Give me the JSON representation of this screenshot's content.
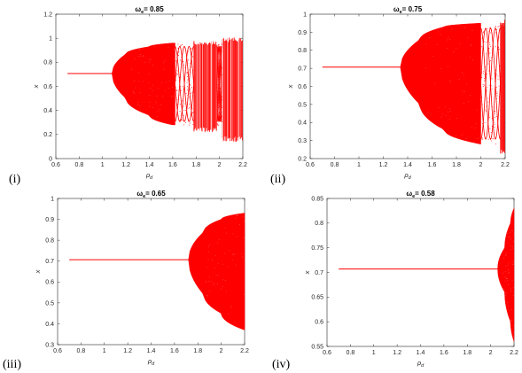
{
  "panels": [
    {
      "label": "(i)",
      "title_sym": "ω",
      "title_sub": "e",
      "title_val": "= 0.85"
    },
    {
      "label": "(ii)",
      "title_sym": "ω",
      "title_sub": "e",
      "title_val": "= 0.75"
    },
    {
      "label": "(iii)",
      "title_sym": "ω",
      "title_sub": "e",
      "title_val": "= 0.65"
    },
    {
      "label": "(iv)",
      "title_sym": "ω",
      "title_sub": "e",
      "title_val": "= 0.58"
    }
  ],
  "colors": {
    "data": "#ff0000",
    "axis": "#262626"
  },
  "chart_data": [
    {
      "type": "scatter",
      "title": "ωe = 0.85",
      "xlabel": "ρd",
      "ylabel": "x",
      "xlim": [
        0.6,
        2.2
      ],
      "ylim": [
        0,
        1.2
      ],
      "xticks": [
        "0.6",
        "0.8",
        "1",
        "1.2",
        "1.4",
        "1.6",
        "1.8",
        "2",
        "2.2"
      ],
      "yticks": [
        "0",
        "0.2",
        "0.4",
        "0.6",
        "0.8",
        "1",
        "1.2"
      ],
      "fixed_point": 0.707,
      "bifurcation_at": 1.08,
      "envelope": [
        [
          1.08,
          0.707,
          0.707
        ],
        [
          1.2,
          0.87,
          0.5
        ],
        [
          1.4,
          0.93,
          0.36
        ],
        [
          1.6,
          0.96,
          0.28
        ],
        [
          1.62,
          0.96,
          0.28
        ]
      ],
      "periodic_windows": [
        [
          1.62,
          1.78
        ],
        [
          1.98,
          2.02
        ]
      ],
      "chaos_bands": [
        [
          1.78,
          1.98,
          0.22,
          0.98
        ],
        [
          2.02,
          2.2,
          0.14,
          1.01
        ]
      ],
      "x_end": 2.2
    },
    {
      "type": "scatter",
      "title": "ωe = 0.75",
      "xlabel": "ρd",
      "ylabel": "x",
      "xlim": [
        0.6,
        2.2
      ],
      "ylim": [
        0.2,
        1.0
      ],
      "xticks": [
        "0.6",
        "0.8",
        "1",
        "1.2",
        "1.4",
        "1.6",
        "1.8",
        "2",
        "2.2"
      ],
      "yticks": [
        "0.2",
        "0.3",
        "0.4",
        "0.5",
        "0.6",
        "0.7",
        "0.8",
        "0.9",
        "1"
      ],
      "fixed_point": 0.707,
      "bifurcation_at": 1.34,
      "envelope": [
        [
          1.34,
          0.707,
          0.707
        ],
        [
          1.5,
          0.86,
          0.5
        ],
        [
          1.7,
          0.93,
          0.36
        ],
        [
          2.0,
          0.95,
          0.28
        ]
      ],
      "periodic_windows": [
        [
          2.0,
          2.16
        ]
      ],
      "chaos_bands": [
        [
          2.16,
          2.2,
          0.22,
          0.97
        ]
      ],
      "x_end": 2.2
    },
    {
      "type": "scatter",
      "title": "ωe = 0.65",
      "xlabel": "ρd",
      "ylabel": "x",
      "xlim": [
        0.6,
        2.2
      ],
      "ylim": [
        0.3,
        1.0
      ],
      "xticks": [
        "0.6",
        "0.8",
        "1",
        "1.2",
        "1.4",
        "1.6",
        "1.8",
        "2",
        "2.2"
      ],
      "yticks": [
        "0.3",
        "0.4",
        "0.5",
        "0.6",
        "0.7",
        "0.8",
        "0.9",
        "1"
      ],
      "fixed_point": 0.707,
      "bifurcation_at": 1.72,
      "envelope": [
        [
          1.72,
          0.707,
          0.707
        ],
        [
          1.85,
          0.84,
          0.54
        ],
        [
          2.0,
          0.9,
          0.45
        ],
        [
          2.2,
          0.93,
          0.37
        ]
      ],
      "periodic_windows": [],
      "chaos_bands": [],
      "x_end": 2.2
    },
    {
      "type": "scatter",
      "title": "ωe = 0.58",
      "xlabel": "ρd",
      "ylabel": "x",
      "xlim": [
        0.6,
        2.2
      ],
      "ylim": [
        0.55,
        0.85
      ],
      "xticks": [
        "0.6",
        "0.8",
        "1",
        "1.2",
        "1.4",
        "1.6",
        "1.8",
        "2",
        "2.2"
      ],
      "yticks": [
        "0.55",
        "0.6",
        "0.65",
        "0.7",
        "0.75",
        "0.8",
        "0.85"
      ],
      "fixed_point": 0.707,
      "bifurcation_at": 2.06,
      "envelope": [
        [
          2.06,
          0.707,
          0.707
        ],
        [
          2.12,
          0.75,
          0.66
        ],
        [
          2.17,
          0.8,
          0.6
        ],
        [
          2.2,
          0.83,
          0.56
        ]
      ],
      "periodic_windows": [],
      "chaos_bands": [],
      "x_end": 2.2
    }
  ]
}
